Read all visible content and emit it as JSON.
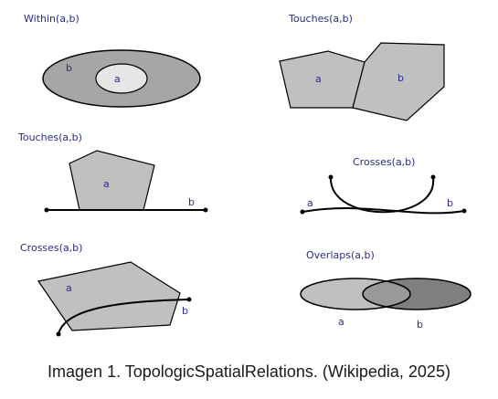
{
  "panels": {
    "within": {
      "title": "Within(a,b)",
      "label_a": "a",
      "label_b": "b"
    },
    "touches_polygons": {
      "title": "Touches(a,b)",
      "label_a": "a",
      "label_b": "b"
    },
    "touches_line": {
      "title": "Touches(a,b)",
      "label_a": "a",
      "label_b": "b"
    },
    "crosses_lines": {
      "title": "Crosses(a,b)",
      "label_a": "a",
      "label_b": "b"
    },
    "crosses_polygon": {
      "title": "Crosses(a,b)",
      "label_a": "a",
      "label_b": "b"
    },
    "overlaps": {
      "title": "Overlaps(a,b)",
      "label_a": "a",
      "label_b": "b"
    }
  },
  "caption": "Imagen 1. TopologicSpatialRelations. (Wikipedia, 2025)",
  "colors": {
    "light_fill": "#c0c0c0",
    "dark_fill": "#a6a6a6",
    "inner_fill": "#e6e6e6",
    "overlap_dark": "#7f7f7f",
    "label": "#2b2b8c"
  }
}
